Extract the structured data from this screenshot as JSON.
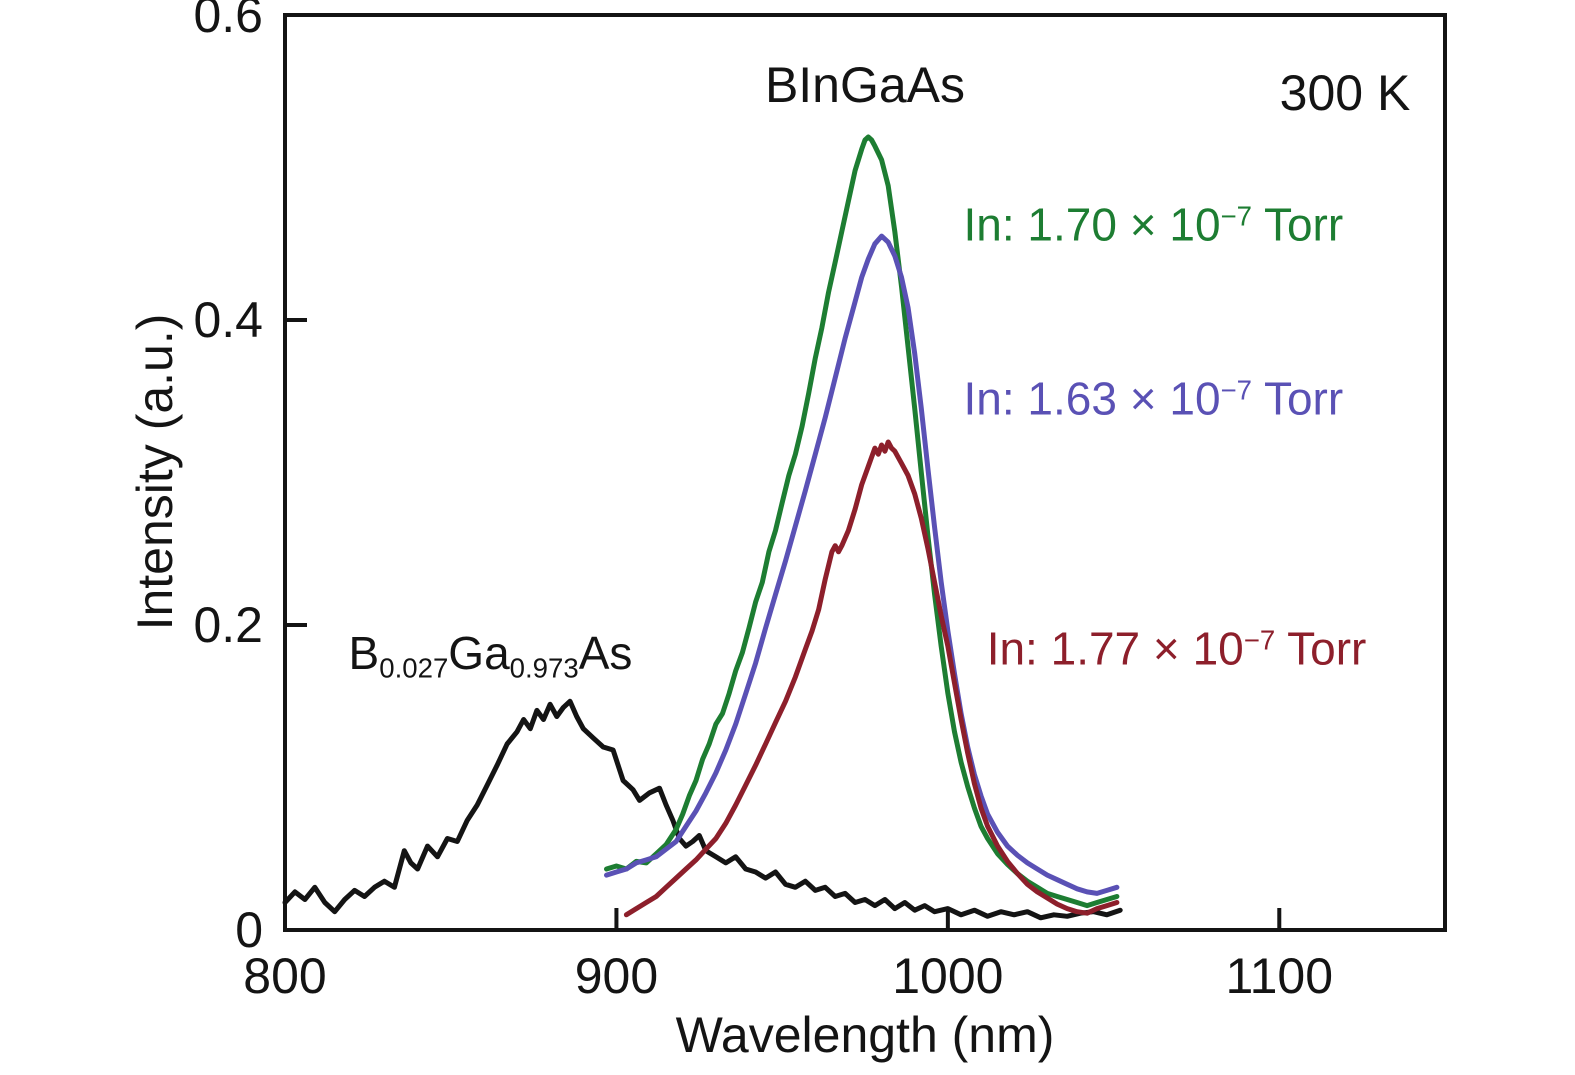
{
  "chart_data": {
    "type": "line",
    "title": "BInGaAs",
    "temperature_label": "300 K",
    "xlabel": "Wavelength (nm)",
    "ylabel": "Intensity (a.u.)",
    "xlim": [
      800,
      1150
    ],
    "ylim": [
      0,
      0.6
    ],
    "xticks": [
      800,
      900,
      1000,
      1100
    ],
    "yticks": [
      0,
      0.2,
      0.4,
      0.6
    ],
    "xtick_labels": [
      "800",
      "900",
      "1000",
      "1100"
    ],
    "ytick_labels": [
      "0",
      "0.2",
      "0.4",
      "0.6"
    ],
    "grid": false,
    "legend_position": "inline-annotations",
    "frame_color": "#141414",
    "series": [
      {
        "name": "B0.027Ga0.973As",
        "color": "#141414",
        "points": [
          [
            800,
            0.018
          ],
          [
            803,
            0.025
          ],
          [
            806,
            0.02
          ],
          [
            809,
            0.028
          ],
          [
            812,
            0.018
          ],
          [
            815,
            0.012
          ],
          [
            818,
            0.02
          ],
          [
            821,
            0.026
          ],
          [
            824,
            0.022
          ],
          [
            827,
            0.028
          ],
          [
            830,
            0.032
          ],
          [
            833,
            0.028
          ],
          [
            836,
            0.052
          ],
          [
            838,
            0.044
          ],
          [
            840,
            0.04
          ],
          [
            843,
            0.055
          ],
          [
            846,
            0.048
          ],
          [
            849,
            0.06
          ],
          [
            852,
            0.058
          ],
          [
            855,
            0.072
          ],
          [
            858,
            0.082
          ],
          [
            861,
            0.095
          ],
          [
            864,
            0.108
          ],
          [
            867,
            0.122
          ],
          [
            870,
            0.13
          ],
          [
            872,
            0.138
          ],
          [
            874,
            0.132
          ],
          [
            876,
            0.144
          ],
          [
            878,
            0.138
          ],
          [
            880,
            0.148
          ],
          [
            882,
            0.14
          ],
          [
            884,
            0.146
          ],
          [
            886,
            0.15
          ],
          [
            888,
            0.14
          ],
          [
            890,
            0.132
          ],
          [
            893,
            0.126
          ],
          [
            896,
            0.12
          ],
          [
            899,
            0.118
          ],
          [
            902,
            0.098
          ],
          [
            905,
            0.092
          ],
          [
            907,
            0.085
          ],
          [
            910,
            0.09
          ],
          [
            913,
            0.093
          ],
          [
            915,
            0.082
          ],
          [
            917,
            0.072
          ],
          [
            919,
            0.06
          ],
          [
            921,
            0.055
          ],
          [
            923,
            0.058
          ],
          [
            925,
            0.062
          ],
          [
            927,
            0.052
          ],
          [
            930,
            0.048
          ],
          [
            933,
            0.044
          ],
          [
            936,
            0.048
          ],
          [
            939,
            0.04
          ],
          [
            942,
            0.038
          ],
          [
            945,
            0.034
          ],
          [
            948,
            0.038
          ],
          [
            951,
            0.03
          ],
          [
            954,
            0.028
          ],
          [
            957,
            0.032
          ],
          [
            960,
            0.026
          ],
          [
            963,
            0.028
          ],
          [
            966,
            0.022
          ],
          [
            969,
            0.024
          ],
          [
            972,
            0.018
          ],
          [
            975,
            0.02
          ],
          [
            978,
            0.016
          ],
          [
            981,
            0.02
          ],
          [
            984,
            0.014
          ],
          [
            987,
            0.018
          ],
          [
            990,
            0.013
          ],
          [
            993,
            0.016
          ],
          [
            996,
            0.012
          ],
          [
            1000,
            0.014
          ],
          [
            1004,
            0.01
          ],
          [
            1008,
            0.013
          ],
          [
            1012,
            0.009
          ],
          [
            1016,
            0.012
          ],
          [
            1020,
            0.01
          ],
          [
            1024,
            0.012
          ],
          [
            1028,
            0.008
          ],
          [
            1032,
            0.01
          ],
          [
            1036,
            0.009
          ],
          [
            1040,
            0.011
          ],
          [
            1044,
            0.012
          ],
          [
            1048,
            0.01
          ],
          [
            1052,
            0.013
          ]
        ]
      },
      {
        "name": "BInGaAs In: 1.70e-7 Torr",
        "color": "#1d7d32",
        "points": [
          [
            897,
            0.04
          ],
          [
            900,
            0.042
          ],
          [
            903,
            0.04
          ],
          [
            906,
            0.045
          ],
          [
            909,
            0.044
          ],
          [
            912,
            0.05
          ],
          [
            915,
            0.056
          ],
          [
            918,
            0.066
          ],
          [
            920,
            0.076
          ],
          [
            922,
            0.088
          ],
          [
            924,
            0.098
          ],
          [
            926,
            0.112
          ],
          [
            928,
            0.122
          ],
          [
            930,
            0.135
          ],
          [
            932,
            0.142
          ],
          [
            934,
            0.155
          ],
          [
            936,
            0.17
          ],
          [
            938,
            0.182
          ],
          [
            940,
            0.198
          ],
          [
            942,
            0.215
          ],
          [
            944,
            0.228
          ],
          [
            946,
            0.248
          ],
          [
            948,
            0.262
          ],
          [
            950,
            0.28
          ],
          [
            952,
            0.298
          ],
          [
            954,
            0.312
          ],
          [
            956,
            0.33
          ],
          [
            958,
            0.352
          ],
          [
            960,
            0.375
          ],
          [
            962,
            0.395
          ],
          [
            964,
            0.418
          ],
          [
            966,
            0.438
          ],
          [
            968,
            0.458
          ],
          [
            970,
            0.478
          ],
          [
            972,
            0.498
          ],
          [
            974,
            0.512
          ],
          [
            975,
            0.518
          ],
          [
            976,
            0.52
          ],
          [
            977,
            0.518
          ],
          [
            978,
            0.514
          ],
          [
            980,
            0.505
          ],
          [
            982,
            0.488
          ],
          [
            984,
            0.458
          ],
          [
            986,
            0.422
          ],
          [
            988,
            0.382
          ],
          [
            990,
            0.342
          ],
          [
            992,
            0.3
          ],
          [
            994,
            0.258
          ],
          [
            996,
            0.22
          ],
          [
            998,
            0.186
          ],
          [
            1000,
            0.155
          ],
          [
            1002,
            0.13
          ],
          [
            1004,
            0.11
          ],
          [
            1006,
            0.094
          ],
          [
            1008,
            0.08
          ],
          [
            1010,
            0.068
          ],
          [
            1012,
            0.06
          ],
          [
            1015,
            0.05
          ],
          [
            1018,
            0.043
          ],
          [
            1021,
            0.037
          ],
          [
            1024,
            0.032
          ],
          [
            1027,
            0.028
          ],
          [
            1030,
            0.024
          ],
          [
            1033,
            0.022
          ],
          [
            1036,
            0.02
          ],
          [
            1039,
            0.018
          ],
          [
            1042,
            0.016
          ],
          [
            1045,
            0.018
          ],
          [
            1048,
            0.02
          ],
          [
            1051,
            0.022
          ]
        ]
      },
      {
        "name": "BInGaAs In: 1.63e-7 Torr",
        "color": "#5a51b5",
        "points": [
          [
            897,
            0.036
          ],
          [
            900,
            0.038
          ],
          [
            903,
            0.04
          ],
          [
            906,
            0.044
          ],
          [
            909,
            0.046
          ],
          [
            912,
            0.048
          ],
          [
            915,
            0.053
          ],
          [
            918,
            0.058
          ],
          [
            921,
            0.068
          ],
          [
            924,
            0.078
          ],
          [
            927,
            0.09
          ],
          [
            930,
            0.103
          ],
          [
            933,
            0.118
          ],
          [
            936,
            0.135
          ],
          [
            939,
            0.155
          ],
          [
            942,
            0.175
          ],
          [
            945,
            0.198
          ],
          [
            948,
            0.22
          ],
          [
            951,
            0.242
          ],
          [
            954,
            0.265
          ],
          [
            957,
            0.288
          ],
          [
            960,
            0.312
          ],
          [
            963,
            0.336
          ],
          [
            966,
            0.362
          ],
          [
            969,
            0.388
          ],
          [
            972,
            0.412
          ],
          [
            974,
            0.428
          ],
          [
            976,
            0.44
          ],
          [
            978,
            0.45
          ],
          [
            980,
            0.455
          ],
          [
            982,
            0.451
          ],
          [
            984,
            0.442
          ],
          [
            986,
            0.428
          ],
          [
            988,
            0.408
          ],
          [
            990,
            0.378
          ],
          [
            992,
            0.342
          ],
          [
            994,
            0.302
          ],
          [
            996,
            0.264
          ],
          [
            998,
            0.228
          ],
          [
            1000,
            0.196
          ],
          [
            1002,
            0.168
          ],
          [
            1004,
            0.142
          ],
          [
            1006,
            0.12
          ],
          [
            1008,
            0.102
          ],
          [
            1010,
            0.088
          ],
          [
            1012,
            0.076
          ],
          [
            1015,
            0.064
          ],
          [
            1018,
            0.055
          ],
          [
            1021,
            0.049
          ],
          [
            1024,
            0.044
          ],
          [
            1027,
            0.04
          ],
          [
            1030,
            0.036
          ],
          [
            1033,
            0.033
          ],
          [
            1036,
            0.03
          ],
          [
            1039,
            0.027
          ],
          [
            1042,
            0.025
          ],
          [
            1045,
            0.024
          ],
          [
            1048,
            0.026
          ],
          [
            1051,
            0.028
          ]
        ]
      },
      {
        "name": "BInGaAs In: 1.77e-7 Torr",
        "color": "#8d1f2b",
        "points": [
          [
            903,
            0.01
          ],
          [
            906,
            0.014
          ],
          [
            909,
            0.018
          ],
          [
            912,
            0.022
          ],
          [
            915,
            0.028
          ],
          [
            918,
            0.034
          ],
          [
            921,
            0.04
          ],
          [
            924,
            0.046
          ],
          [
            927,
            0.053
          ],
          [
            930,
            0.06
          ],
          [
            933,
            0.07
          ],
          [
            936,
            0.082
          ],
          [
            939,
            0.095
          ],
          [
            942,
            0.108
          ],
          [
            945,
            0.122
          ],
          [
            948,
            0.136
          ],
          [
            951,
            0.15
          ],
          [
            954,
            0.166
          ],
          [
            957,
            0.184
          ],
          [
            959,
            0.196
          ],
          [
            961,
            0.21
          ],
          [
            963,
            0.23
          ],
          [
            965,
            0.248
          ],
          [
            966,
            0.252
          ],
          [
            967,
            0.248
          ],
          [
            968,
            0.252
          ],
          [
            970,
            0.262
          ],
          [
            972,
            0.276
          ],
          [
            974,
            0.292
          ],
          [
            976,
            0.304
          ],
          [
            977,
            0.31
          ],
          [
            978,
            0.316
          ],
          [
            979,
            0.312
          ],
          [
            980,
            0.318
          ],
          [
            981,
            0.314
          ],
          [
            982,
            0.32
          ],
          [
            983,
            0.316
          ],
          [
            984,
            0.314
          ],
          [
            986,
            0.306
          ],
          [
            988,
            0.298
          ],
          [
            990,
            0.286
          ],
          [
            992,
            0.27
          ],
          [
            994,
            0.25
          ],
          [
            996,
            0.228
          ],
          [
            998,
            0.206
          ],
          [
            1000,
            0.186
          ],
          [
            1002,
            0.162
          ],
          [
            1004,
            0.138
          ],
          [
            1006,
            0.116
          ],
          [
            1008,
            0.096
          ],
          [
            1010,
            0.08
          ],
          [
            1012,
            0.068
          ],
          [
            1015,
            0.055
          ],
          [
            1018,
            0.045
          ],
          [
            1021,
            0.037
          ],
          [
            1024,
            0.03
          ],
          [
            1027,
            0.025
          ],
          [
            1030,
            0.021
          ],
          [
            1033,
            0.017
          ],
          [
            1036,
            0.014
          ],
          [
            1039,
            0.012
          ],
          [
            1042,
            0.011
          ],
          [
            1045,
            0.014
          ],
          [
            1048,
            0.016
          ],
          [
            1051,
            0.018
          ]
        ]
      }
    ],
    "annotations": [
      {
        "id": "bgaas-curve-label",
        "color": "#141414",
        "x": 862,
        "y": 0.18,
        "parts": [
          {
            "t": "B"
          },
          {
            "t": "0.027",
            "sub": true
          },
          {
            "t": "Ga"
          },
          {
            "t": "0.973",
            "sub": true
          },
          {
            "t": "As"
          }
        ]
      },
      {
        "id": "green-torr-label",
        "color": "#1d7d32",
        "x": 1062,
        "y": 0.462,
        "parts": [
          {
            "t": "In: 1.70 × 10"
          },
          {
            "t": "−7",
            "sup": true
          },
          {
            "t": " Torr"
          }
        ]
      },
      {
        "id": "blue-torr-label",
        "color": "#5a51b5",
        "x": 1062,
        "y": 0.348,
        "parts": [
          {
            "t": "In: 1.63 × 10"
          },
          {
            "t": "−7",
            "sup": true
          },
          {
            "t": " Torr"
          }
        ]
      },
      {
        "id": "red-torr-label",
        "color": "#8d1f2b",
        "x": 1069,
        "y": 0.184,
        "parts": [
          {
            "t": "In: 1.77 × 10"
          },
          {
            "t": "−7",
            "sup": true
          },
          {
            "t": " Torr"
          }
        ]
      }
    ]
  }
}
